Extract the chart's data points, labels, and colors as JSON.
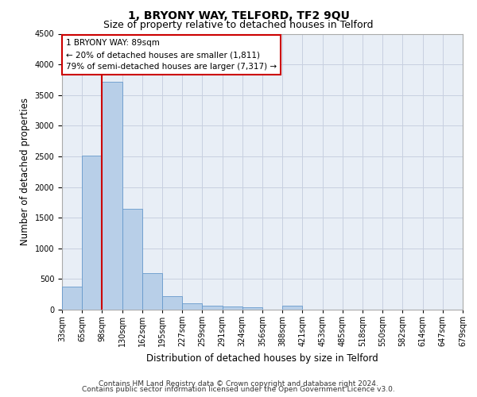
{
  "title_line1": "1, BRYONY WAY, TELFORD, TF2 9QU",
  "title_line2": "Size of property relative to detached houses in Telford",
  "xlabel": "Distribution of detached houses by size in Telford",
  "ylabel": "Number of detached properties",
  "bar_values": [
    370,
    2510,
    3720,
    1640,
    590,
    225,
    110,
    70,
    55,
    45,
    0,
    70,
    0,
    0,
    0,
    0,
    0,
    0,
    0,
    0
  ],
  "categories": [
    "33sqm",
    "65sqm",
    "98sqm",
    "130sqm",
    "162sqm",
    "195sqm",
    "227sqm",
    "259sqm",
    "291sqm",
    "324sqm",
    "356sqm",
    "388sqm",
    "421sqm",
    "453sqm",
    "485sqm",
    "518sqm",
    "550sqm",
    "582sqm",
    "614sqm",
    "647sqm",
    "679sqm"
  ],
  "bar_color": "#b8cfe8",
  "bar_edge_color": "#6699cc",
  "grid_color": "#c8d0e0",
  "background_color": "#e8eef6",
  "vline_x_index": 2,
  "vline_color": "#cc0000",
  "annotation_text": "1 BRYONY WAY: 89sqm\n← 20% of detached houses are smaller (1,811)\n79% of semi-detached houses are larger (7,317) →",
  "annotation_box_color": "#cc0000",
  "ylim": [
    0,
    4500
  ],
  "yticks": [
    0,
    500,
    1000,
    1500,
    2000,
    2500,
    3000,
    3500,
    4000,
    4500
  ],
  "footnote_line1": "Contains HM Land Registry data © Crown copyright and database right 2024.",
  "footnote_line2": "Contains public sector information licensed under the Open Government Licence v3.0.",
  "title_fontsize": 10,
  "subtitle_fontsize": 9,
  "axis_label_fontsize": 8.5,
  "tick_fontsize": 7,
  "annotation_fontsize": 7.5,
  "footnote_fontsize": 6.5
}
